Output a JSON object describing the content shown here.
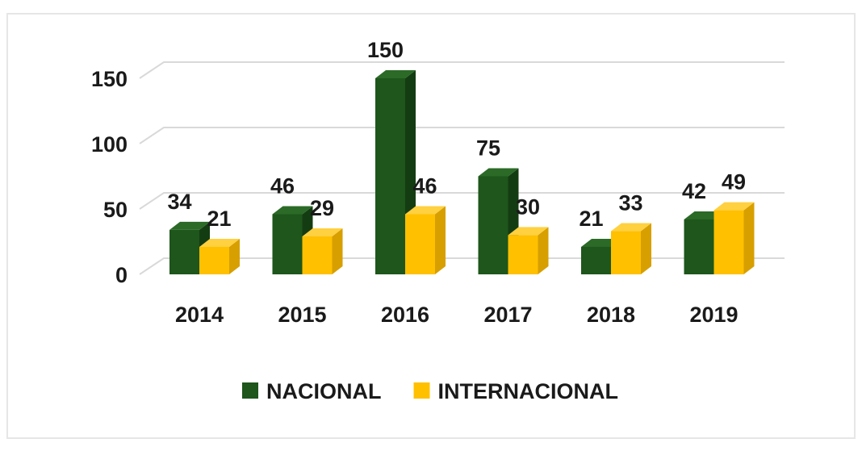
{
  "chart_data": {
    "type": "bar",
    "title": "",
    "xlabel": "",
    "ylabel": "",
    "categories": [
      "2014",
      "2015",
      "2016",
      "2017",
      "2018",
      "2019"
    ],
    "series": [
      {
        "name": "NACIONAL",
        "color": "#1e561b",
        "side_color": "#143c12",
        "top_color": "#2b6a27",
        "values": [
          34,
          46,
          150,
          75,
          21,
          42
        ]
      },
      {
        "name": "INTERNACIONAL",
        "color": "#ffc000",
        "side_color": "#d79f00",
        "top_color": "#ffd040",
        "values": [
          21,
          29,
          46,
          30,
          33,
          49
        ]
      }
    ],
    "yticks": [
      0,
      50,
      100,
      150
    ],
    "ylim": [
      0,
      150
    ],
    "grid": true,
    "three_d": true,
    "legend_position": "bottom-center"
  }
}
